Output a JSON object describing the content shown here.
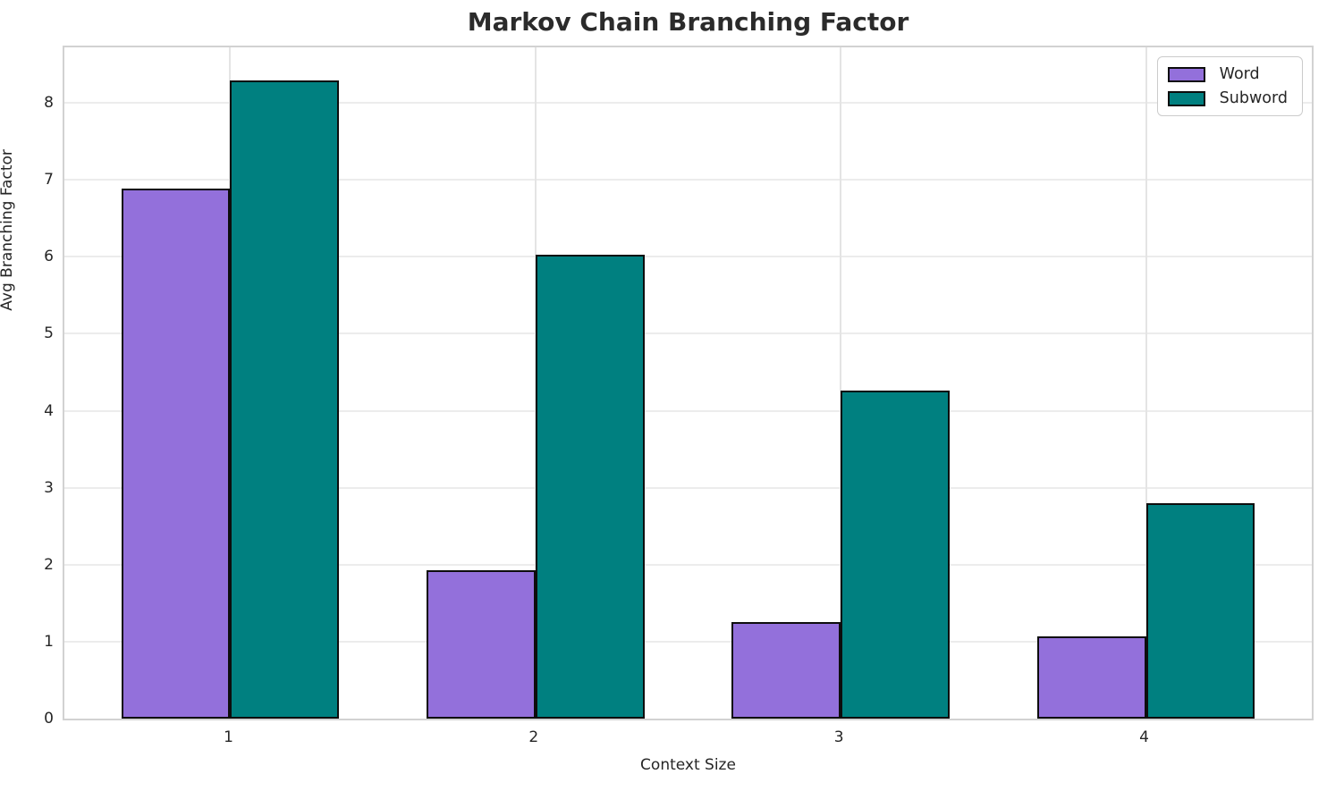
{
  "chart_data": {
    "type": "bar",
    "title": "Markov Chain Branching Factor",
    "xlabel": "Context Size",
    "ylabel": "Avg Branching Factor",
    "categories": [
      "1",
      "2",
      "3",
      "4"
    ],
    "series": [
      {
        "name": "Word",
        "color": "#9370DB",
        "values": [
          6.88,
          1.93,
          1.25,
          1.07
        ]
      },
      {
        "name": "Subword",
        "color": "#008080",
        "values": [
          8.29,
          6.03,
          4.26,
          2.8
        ]
      }
    ],
    "ylim": [
      0,
      8.72
    ],
    "yticks": [
      0,
      1,
      2,
      3,
      4,
      5,
      6,
      7,
      8
    ],
    "grid": true,
    "legend_position": "upper right",
    "bar_edge_color": "#0d0d0d",
    "background_color": "#ffffff",
    "gridline_color": "#ececec",
    "spine_color": "#d2d2d2",
    "title_color": "#2b2b2b",
    "tick_label_color": "#262626"
  }
}
